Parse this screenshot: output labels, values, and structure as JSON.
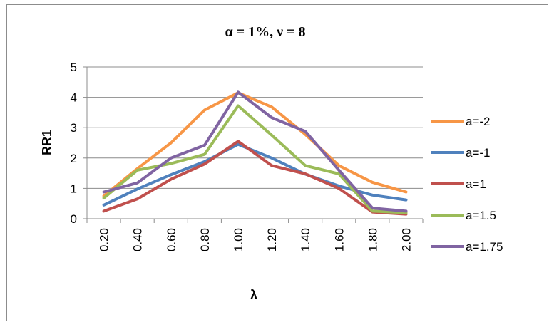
{
  "chart_data": {
    "type": "line",
    "title": "α = 1%, ν = 8",
    "xlabel": "λ",
    "ylabel": "RR1",
    "categories": [
      "0.20",
      "0.40",
      "0.60",
      "0.80",
      "1.00",
      "1.20",
      "1.40",
      "1.60",
      "1.80",
      "2.00"
    ],
    "ylim": [
      0,
      5
    ],
    "yticks": [
      "0",
      "1",
      "2",
      "3",
      "4",
      "5"
    ],
    "grid": true,
    "legend_position": "right",
    "series": [
      {
        "name": "a=-2",
        "color": "#F79646",
        "values": [
          0.75,
          1.65,
          2.5,
          3.58,
          4.15,
          3.68,
          2.78,
          1.75,
          1.2,
          0.88
        ]
      },
      {
        "name": "a=-1",
        "color": "#4F81BD",
        "values": [
          0.45,
          0.98,
          1.45,
          1.88,
          2.45,
          2.0,
          1.47,
          1.08,
          0.78,
          0.62
        ]
      },
      {
        "name": "a=1",
        "color": "#C0504D",
        "values": [
          0.25,
          0.65,
          1.3,
          1.8,
          2.55,
          1.75,
          1.48,
          1.0,
          0.22,
          0.15
        ]
      },
      {
        "name": "a=1.5",
        "color": "#9BBB59",
        "values": [
          0.68,
          1.6,
          1.82,
          2.12,
          3.72,
          2.75,
          1.75,
          1.48,
          0.25,
          0.2
        ]
      },
      {
        "name": "a=1.75",
        "color": "#8064A2",
        "values": [
          0.88,
          1.18,
          2.0,
          2.42,
          4.17,
          3.33,
          2.88,
          1.6,
          0.35,
          0.25
        ]
      }
    ]
  }
}
